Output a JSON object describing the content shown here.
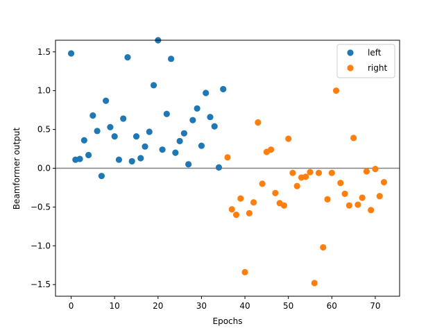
{
  "chart_data": {
    "type": "scatter",
    "title": "",
    "xlabel": "Epochs",
    "ylabel": "Beamformer output",
    "xlim": [
      -3.6,
      75.6
    ],
    "ylim": [
      -1.65,
      1.65
    ],
    "xticks": [
      0,
      10,
      20,
      30,
      40,
      50,
      60,
      70
    ],
    "yticks": [
      -1.5,
      -1.0,
      -0.5,
      0.0,
      0.5,
      1.0,
      1.5
    ],
    "ytick_labels": [
      "−1.5",
      "−1.0",
      "−0.5",
      "0.0",
      "0.5",
      "1.0",
      "1.5"
    ],
    "grid": false,
    "legend_position": "upper-right",
    "reference_line": {
      "y": 0.0,
      "color": "#808080"
    },
    "series": [
      {
        "name": "left",
        "color": "#1f77b4",
        "x": [
          0,
          1,
          2,
          3,
          4,
          5,
          6,
          7,
          8,
          9,
          10,
          11,
          12,
          13,
          14,
          15,
          16,
          17,
          18,
          19,
          20,
          21,
          22,
          23,
          24,
          25,
          26,
          27,
          28,
          29,
          30,
          31,
          32,
          33,
          34,
          35
        ],
        "y": [
          1.48,
          0.11,
          0.12,
          0.36,
          0.17,
          0.68,
          0.48,
          -0.1,
          0.87,
          0.53,
          0.41,
          0.11,
          0.64,
          1.43,
          0.09,
          0.41,
          0.13,
          0.28,
          0.47,
          1.07,
          1.65,
          0.24,
          0.7,
          1.41,
          0.2,
          0.35,
          0.45,
          0.05,
          0.62,
          0.77,
          0.29,
          0.97,
          0.66,
          0.54,
          0.01,
          1.02
        ]
      },
      {
        "name": "right",
        "color": "#ff7f0e",
        "x": [
          36,
          37,
          38,
          39,
          40,
          41,
          42,
          43,
          44,
          45,
          46,
          47,
          48,
          49,
          50,
          51,
          52,
          53,
          54,
          55,
          56,
          57,
          58,
          59,
          60,
          61,
          62,
          63,
          64,
          65,
          66,
          67,
          68,
          69,
          70,
          71,
          72
        ],
        "y": [
          0.14,
          -0.53,
          -0.6,
          -0.39,
          -1.34,
          -0.58,
          -0.44,
          0.59,
          -0.2,
          0.21,
          0.24,
          -0.32,
          -0.45,
          -0.48,
          0.38,
          -0.06,
          -0.23,
          -0.12,
          -0.11,
          -0.05,
          -1.48,
          -0.06,
          -1.02,
          -0.4,
          -0.06,
          1.0,
          -0.19,
          -0.33,
          -0.48,
          0.39,
          -0.47,
          -0.38,
          -0.04,
          -0.54,
          -0.01,
          -0.36,
          -0.18
        ]
      }
    ]
  }
}
